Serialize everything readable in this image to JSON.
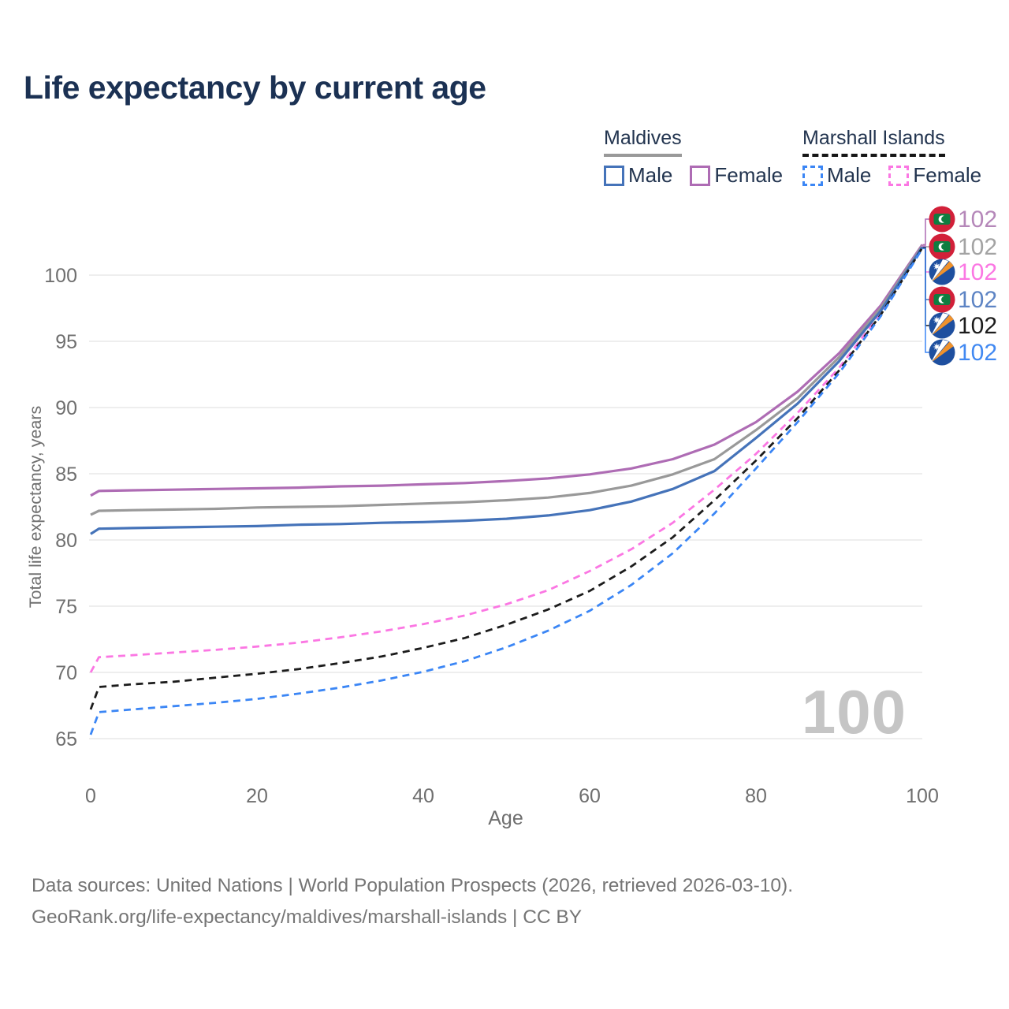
{
  "title": "Life expectancy by current age",
  "legend": {
    "groups": [
      {
        "name": "Maldives",
        "line_style": "solid",
        "underline_color": "#999999",
        "items": [
          {
            "label": "Male",
            "color": "#4573b9"
          },
          {
            "label": "Female",
            "color": "#ae6cb4"
          }
        ]
      },
      {
        "name": "Marshall Islands",
        "line_style": "dashed",
        "underline_color": "#161616",
        "items": [
          {
            "label": "Male",
            "color": "#3b86f5"
          },
          {
            "label": "Female",
            "color": "#fb77e3"
          }
        ]
      }
    ]
  },
  "watermark": "100",
  "footer": {
    "line1": "Data sources: United Nations | World Population Prospects (2026, retrieved 2026-03-10).",
    "line2": "GeoRank.org/life-expectancy/maldives/marshall-islands | CC BY"
  },
  "chart_data": {
    "type": "line",
    "title": "Life expectancy by current age",
    "xlabel": "Age",
    "ylabel": "Total life expectancy, years",
    "xlim": [
      0,
      100
    ],
    "ylim": [
      65,
      102.5
    ],
    "x_ticks": [
      0,
      20,
      40,
      60,
      80,
      100
    ],
    "y_ticks": [
      65,
      70,
      75,
      80,
      85,
      90,
      95,
      100
    ],
    "grid": "horizontal-only",
    "legend_position": "top-right",
    "x": [
      0,
      1,
      5,
      10,
      15,
      20,
      25,
      30,
      35,
      40,
      45,
      50,
      55,
      60,
      65,
      70,
      75,
      80,
      85,
      90,
      95,
      100
    ],
    "series": [
      {
        "name": "Maldives Female",
        "country": "maldives",
        "sex": "female",
        "color": "#ae6cb4",
        "dashed": false,
        "legend_rank": 0,
        "end_label": "102",
        "end_label_color": "#b587b9",
        "flag": "mv",
        "values": [
          83.35,
          83.7,
          83.75,
          83.8,
          83.85,
          83.9,
          83.95,
          84.05,
          84.1,
          84.2,
          84.3,
          84.45,
          84.65,
          84.95,
          85.4,
          86.1,
          87.2,
          88.9,
          91.2,
          94.1,
          97.7,
          102.3
        ]
      },
      {
        "name": "Maldives Total",
        "country": "maldives",
        "sex": "both",
        "color": "#999999",
        "dashed": false,
        "legend_rank": 1,
        "end_label": "102",
        "end_label_color": "#a3a3a3",
        "flag": "mv",
        "values": [
          81.9,
          82.2,
          82.25,
          82.3,
          82.35,
          82.45,
          82.5,
          82.55,
          82.65,
          82.75,
          82.85,
          83.0,
          83.2,
          83.55,
          84.1,
          84.95,
          86.1,
          88.3,
          90.7,
          93.8,
          97.5,
          102.22
        ]
      },
      {
        "name": "Marshall Islands Female",
        "country": "marshall-islands",
        "sex": "female",
        "color": "#fb77e3",
        "dashed": true,
        "legend_rank": 2,
        "end_label": "102",
        "end_label_color": "#fb77e3",
        "flag": "mh",
        "values": [
          70.0,
          71.15,
          71.3,
          71.5,
          71.7,
          71.95,
          72.25,
          72.65,
          73.1,
          73.65,
          74.3,
          75.15,
          76.2,
          77.65,
          79.3,
          81.3,
          83.8,
          86.5,
          89.6,
          93.0,
          97.1,
          102.18
        ]
      },
      {
        "name": "Maldives Male",
        "country": "maldives",
        "sex": "male",
        "color": "#4573b9",
        "dashed": false,
        "legend_rank": 3,
        "end_label": "102",
        "end_label_color": "#5d84c4",
        "flag": "mv",
        "values": [
          80.45,
          80.85,
          80.9,
          80.95,
          81.0,
          81.05,
          81.15,
          81.2,
          81.3,
          81.35,
          81.45,
          81.6,
          81.85,
          82.25,
          82.9,
          83.85,
          85.2,
          87.7,
          90.3,
          93.5,
          97.3,
          102.12
        ]
      },
      {
        "name": "Marshall Islands Total",
        "country": "marshall-islands",
        "sex": "both",
        "color": "#1c1c1c",
        "dashed": true,
        "legend_rank": 4,
        "end_label": "102",
        "end_label_color": "#1c1c1c",
        "flag": "mh",
        "values": [
          67.2,
          68.9,
          69.1,
          69.3,
          69.6,
          69.9,
          70.25,
          70.7,
          71.2,
          71.85,
          72.6,
          73.6,
          74.75,
          76.15,
          78.0,
          80.2,
          83.0,
          86.0,
          89.2,
          92.8,
          97.0,
          102.06
        ]
      },
      {
        "name": "Marshall Islands Male",
        "country": "marshall-islands",
        "sex": "male",
        "color": "#3b86f5",
        "dashed": true,
        "legend_rank": 5,
        "end_label": "102",
        "end_label_color": "#4189f2",
        "flag": "mh",
        "values": [
          65.3,
          67.0,
          67.2,
          67.45,
          67.7,
          68.0,
          68.4,
          68.85,
          69.4,
          70.05,
          70.85,
          71.9,
          73.15,
          74.65,
          76.6,
          79.0,
          82.0,
          85.4,
          88.9,
          92.6,
          96.9,
          102.0
        ]
      }
    ]
  }
}
